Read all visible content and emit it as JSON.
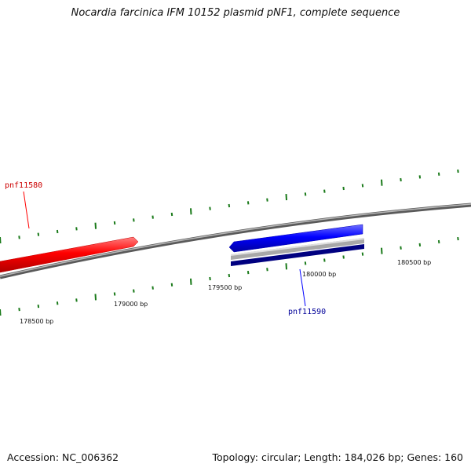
{
  "title": "Nocardia farcinica IFM 10152 plasmid pNF1, complete sequence",
  "footer": {
    "accession": "Accession: NC_006362",
    "summary": "Topology: circular; Length: 184,026 bp; Genes: 160"
  },
  "scale_labels": [
    {
      "id": "tick-178500",
      "text": "178500 bp"
    },
    {
      "id": "tick-179000",
      "text": "179000 bp"
    },
    {
      "id": "tick-179500",
      "text": "179500 bp"
    },
    {
      "id": "tick-180000",
      "text": "180000 bp"
    },
    {
      "id": "tick-180500",
      "text": "180500 bp"
    }
  ],
  "genes": [
    {
      "id": "pnf11580",
      "label": "pnf11580",
      "strand": "forward",
      "color": "#ff0000"
    },
    {
      "id": "pnf11590",
      "label": "pnf11590",
      "strand": "reverse",
      "color": "#0000ff"
    }
  ],
  "colors": {
    "backbone": "#808080",
    "tick": "#1a7a1a",
    "forward_gene": "#ff0000",
    "reverse_gene": "#0000ff",
    "reverse_gene_dark": "#000080",
    "reverse_gene_grey": "#b0b0b0"
  }
}
